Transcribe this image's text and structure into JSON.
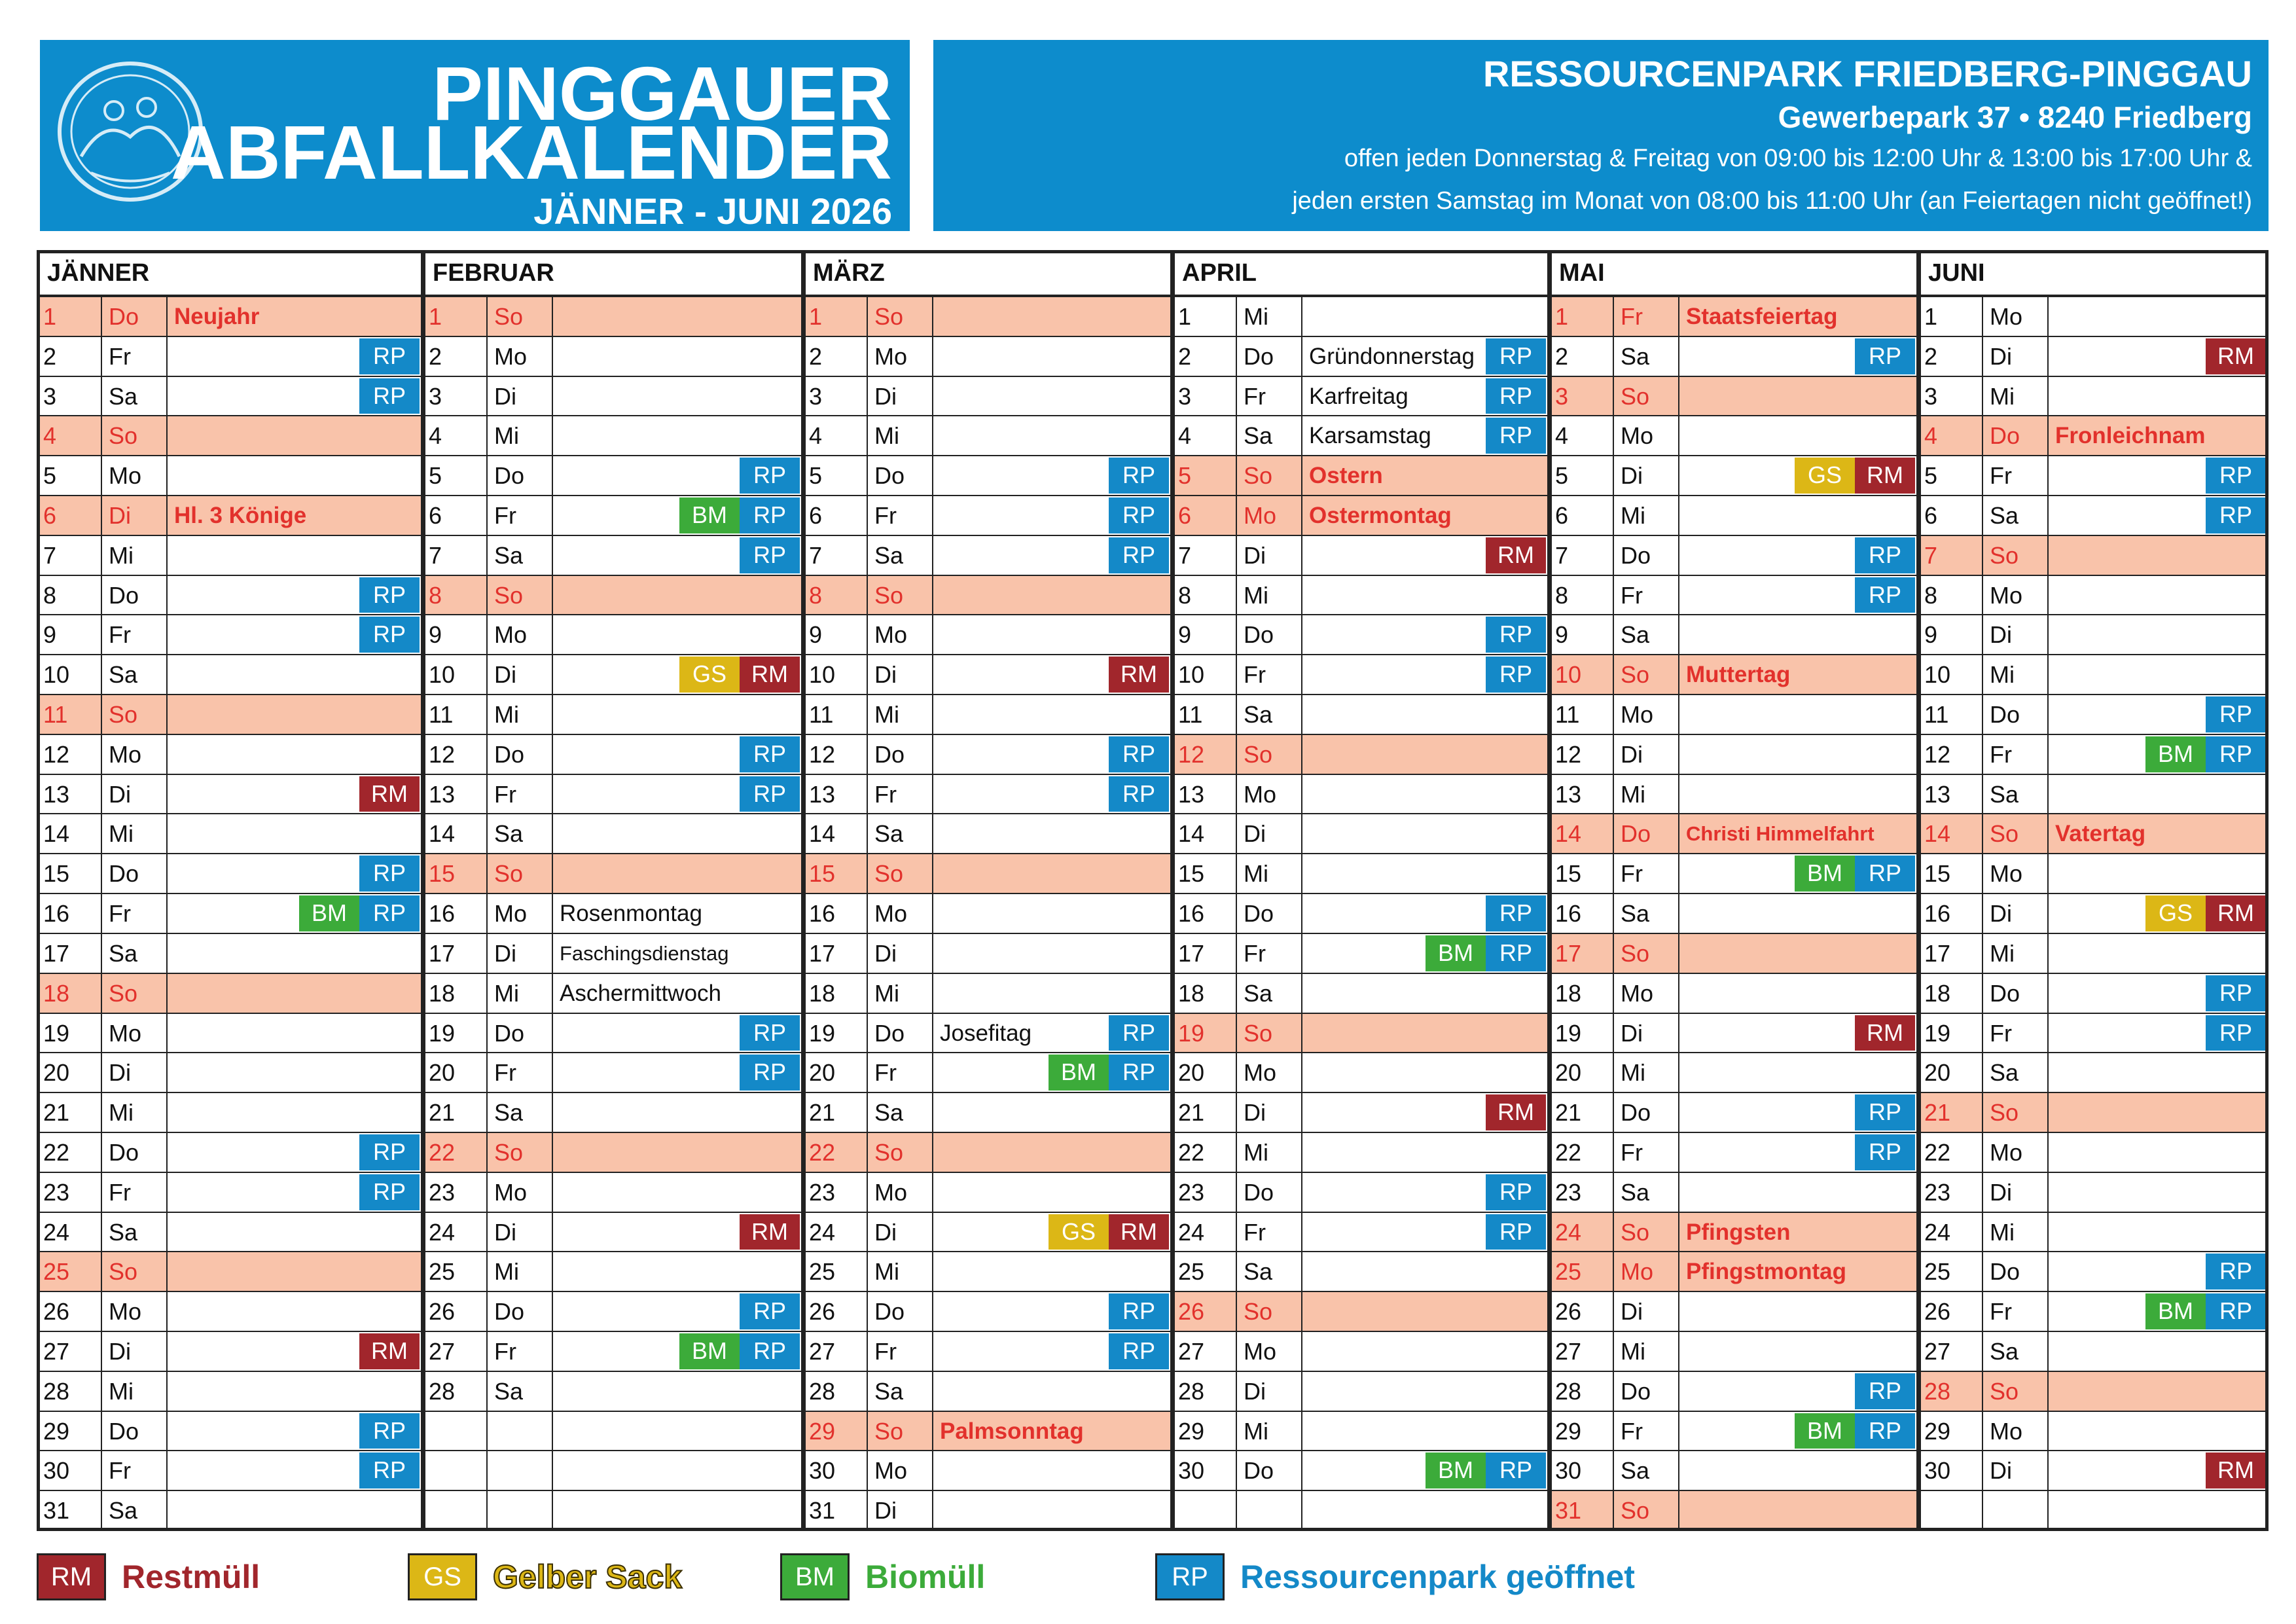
{
  "header": {
    "title_line1": "PINGGAUER",
    "title_line2": "ABFALLKALENDER",
    "period": "JÄNNER - JUNI 2026"
  },
  "info": {
    "name": "RESSOURCENPARK FRIEDBERG-PINGGAU",
    "address": "Gewerbepark 37 • 8240 Friedberg",
    "hours_line1": "offen jeden Donnerstag & Freitag von 09:00 bis 12:00 Uhr & 13:00 bis 17:00 Uhr &",
    "hours_line2": "jeden ersten Samstag im Monat von 08:00 bis 11:00 Uhr (an Feiertagen nicht geöffnet!)"
  },
  "months": [
    {
      "name": "JÄNNER",
      "days": [
        {
          "day": 1,
          "weekday": "Do",
          "note": "Neujahr",
          "holiday": true
        },
        {
          "day": 2,
          "weekday": "Fr",
          "tags": [
            "RP"
          ]
        },
        {
          "day": 3,
          "weekday": "Sa",
          "tags": [
            "RP"
          ]
        },
        {
          "day": 4,
          "weekday": "So",
          "holiday": true
        },
        {
          "day": 5,
          "weekday": "Mo"
        },
        {
          "day": 6,
          "weekday": "Di",
          "note": "Hl. 3 Könige",
          "holiday": true
        },
        {
          "day": 7,
          "weekday": "Mi"
        },
        {
          "day": 8,
          "weekday": "Do",
          "tags": [
            "RP"
          ]
        },
        {
          "day": 9,
          "weekday": "Fr",
          "tags": [
            "RP"
          ]
        },
        {
          "day": 10,
          "weekday": "Sa"
        },
        {
          "day": 11,
          "weekday": "So",
          "holiday": true
        },
        {
          "day": 12,
          "weekday": "Mo"
        },
        {
          "day": 13,
          "weekday": "Di",
          "tags": [
            "RM"
          ]
        },
        {
          "day": 14,
          "weekday": "Mi"
        },
        {
          "day": 15,
          "weekday": "Do",
          "tags": [
            "RP"
          ]
        },
        {
          "day": 16,
          "weekday": "Fr",
          "tags": [
            "BM",
            "RP"
          ]
        },
        {
          "day": 17,
          "weekday": "Sa"
        },
        {
          "day": 18,
          "weekday": "So",
          "holiday": true
        },
        {
          "day": 19,
          "weekday": "Mo"
        },
        {
          "day": 20,
          "weekday": "Di"
        },
        {
          "day": 21,
          "weekday": "Mi"
        },
        {
          "day": 22,
          "weekday": "Do",
          "tags": [
            "RP"
          ]
        },
        {
          "day": 23,
          "weekday": "Fr",
          "tags": [
            "RP"
          ]
        },
        {
          "day": 24,
          "weekday": "Sa"
        },
        {
          "day": 25,
          "weekday": "So",
          "holiday": true
        },
        {
          "day": 26,
          "weekday": "Mo"
        },
        {
          "day": 27,
          "weekday": "Di",
          "tags": [
            "RM"
          ]
        },
        {
          "day": 28,
          "weekday": "Mi"
        },
        {
          "day": 29,
          "weekday": "Do",
          "tags": [
            "RP"
          ]
        },
        {
          "day": 30,
          "weekday": "Fr",
          "tags": [
            "RP"
          ]
        },
        {
          "day": 31,
          "weekday": "Sa"
        }
      ]
    },
    {
      "name": "FEBRUAR",
      "days": [
        {
          "day": 1,
          "weekday": "So",
          "holiday": true
        },
        {
          "day": 2,
          "weekday": "Mo"
        },
        {
          "day": 3,
          "weekday": "Di"
        },
        {
          "day": 4,
          "weekday": "Mi"
        },
        {
          "day": 5,
          "weekday": "Do",
          "tags": [
            "RP"
          ]
        },
        {
          "day": 6,
          "weekday": "Fr",
          "tags": [
            "BM",
            "RP"
          ]
        },
        {
          "day": 7,
          "weekday": "Sa",
          "tags": [
            "RP"
          ]
        },
        {
          "day": 8,
          "weekday": "So",
          "holiday": true
        },
        {
          "day": 9,
          "weekday": "Mo"
        },
        {
          "day": 10,
          "weekday": "Di",
          "tags": [
            "GS",
            "RM"
          ]
        },
        {
          "day": 11,
          "weekday": "Mi"
        },
        {
          "day": 12,
          "weekday": "Do",
          "tags": [
            "RP"
          ]
        },
        {
          "day": 13,
          "weekday": "Fr",
          "tags": [
            "RP"
          ]
        },
        {
          "day": 14,
          "weekday": "Sa"
        },
        {
          "day": 15,
          "weekday": "So",
          "holiday": true
        },
        {
          "day": 16,
          "weekday": "Mo",
          "note": "Rosenmontag"
        },
        {
          "day": 17,
          "weekday": "Di",
          "note": "Faschingsdienstag"
        },
        {
          "day": 18,
          "weekday": "Mi",
          "note": "Aschermittwoch"
        },
        {
          "day": 19,
          "weekday": "Do",
          "tags": [
            "RP"
          ]
        },
        {
          "day": 20,
          "weekday": "Fr",
          "tags": [
            "RP"
          ]
        },
        {
          "day": 21,
          "weekday": "Sa"
        },
        {
          "day": 22,
          "weekday": "So",
          "holiday": true
        },
        {
          "day": 23,
          "weekday": "Mo"
        },
        {
          "day": 24,
          "weekday": "Di",
          "tags": [
            "RM"
          ]
        },
        {
          "day": 25,
          "weekday": "Mi"
        },
        {
          "day": 26,
          "weekday": "Do",
          "tags": [
            "RP"
          ]
        },
        {
          "day": 27,
          "weekday": "Fr",
          "tags": [
            "BM",
            "RP"
          ]
        },
        {
          "day": 28,
          "weekday": "Sa"
        }
      ]
    },
    {
      "name": "MÄRZ",
      "days": [
        {
          "day": 1,
          "weekday": "So",
          "holiday": true
        },
        {
          "day": 2,
          "weekday": "Mo"
        },
        {
          "day": 3,
          "weekday": "Di"
        },
        {
          "day": 4,
          "weekday": "Mi"
        },
        {
          "day": 5,
          "weekday": "Do",
          "tags": [
            "RP"
          ]
        },
        {
          "day": 6,
          "weekday": "Fr",
          "tags": [
            "RP"
          ]
        },
        {
          "day": 7,
          "weekday": "Sa",
          "tags": [
            "RP"
          ]
        },
        {
          "day": 8,
          "weekday": "So",
          "holiday": true
        },
        {
          "day": 9,
          "weekday": "Mo"
        },
        {
          "day": 10,
          "weekday": "Di",
          "tags": [
            "RM"
          ]
        },
        {
          "day": 11,
          "weekday": "Mi"
        },
        {
          "day": 12,
          "weekday": "Do",
          "tags": [
            "RP"
          ]
        },
        {
          "day": 13,
          "weekday": "Fr",
          "tags": [
            "RP"
          ]
        },
        {
          "day": 14,
          "weekday": "Sa"
        },
        {
          "day": 15,
          "weekday": "So",
          "holiday": true
        },
        {
          "day": 16,
          "weekday": "Mo"
        },
        {
          "day": 17,
          "weekday": "Di"
        },
        {
          "day": 18,
          "weekday": "Mi"
        },
        {
          "day": 19,
          "weekday": "Do",
          "note": "Josefitag",
          "tags": [
            "RP"
          ]
        },
        {
          "day": 20,
          "weekday": "Fr",
          "tags": [
            "BM",
            "RP"
          ]
        },
        {
          "day": 21,
          "weekday": "Sa"
        },
        {
          "day": 22,
          "weekday": "So",
          "holiday": true
        },
        {
          "day": 23,
          "weekday": "Mo"
        },
        {
          "day": 24,
          "weekday": "Di",
          "tags": [
            "GS",
            "RM"
          ]
        },
        {
          "day": 25,
          "weekday": "Mi"
        },
        {
          "day": 26,
          "weekday": "Do",
          "tags": [
            "RP"
          ]
        },
        {
          "day": 27,
          "weekday": "Fr",
          "tags": [
            "RP"
          ]
        },
        {
          "day": 28,
          "weekday": "Sa"
        },
        {
          "day": 29,
          "weekday": "So",
          "note": "Palmsonntag",
          "holiday": true
        },
        {
          "day": 30,
          "weekday": "Mo"
        },
        {
          "day": 31,
          "weekday": "Di"
        }
      ]
    },
    {
      "name": "APRIL",
      "days": [
        {
          "day": 1,
          "weekday": "Mi"
        },
        {
          "day": 2,
          "weekday": "Do",
          "note": "Gründonnerstag",
          "tags": [
            "RP"
          ]
        },
        {
          "day": 3,
          "weekday": "Fr",
          "note": "Karfreitag",
          "tags": [
            "RP"
          ]
        },
        {
          "day": 4,
          "weekday": "Sa",
          "note": "Karsamstag",
          "tags": [
            "RP"
          ]
        },
        {
          "day": 5,
          "weekday": "So",
          "note": "Ostern",
          "holiday": true
        },
        {
          "day": 6,
          "weekday": "Mo",
          "note": "Ostermontag",
          "holiday": true
        },
        {
          "day": 7,
          "weekday": "Di",
          "tags": [
            "RM"
          ]
        },
        {
          "day": 8,
          "weekday": "Mi"
        },
        {
          "day": 9,
          "weekday": "Do",
          "tags": [
            "RP"
          ]
        },
        {
          "day": 10,
          "weekday": "Fr",
          "tags": [
            "RP"
          ]
        },
        {
          "day": 11,
          "weekday": "Sa"
        },
        {
          "day": 12,
          "weekday": "So",
          "holiday": true
        },
        {
          "day": 13,
          "weekday": "Mo"
        },
        {
          "day": 14,
          "weekday": "Di"
        },
        {
          "day": 15,
          "weekday": "Mi"
        },
        {
          "day": 16,
          "weekday": "Do",
          "tags": [
            "RP"
          ]
        },
        {
          "day": 17,
          "weekday": "Fr",
          "tags": [
            "BM",
            "RP"
          ]
        },
        {
          "day": 18,
          "weekday": "Sa"
        },
        {
          "day": 19,
          "weekday": "So",
          "holiday": true
        },
        {
          "day": 20,
          "weekday": "Mo"
        },
        {
          "day": 21,
          "weekday": "Di",
          "tags": [
            "RM"
          ]
        },
        {
          "day": 22,
          "weekday": "Mi"
        },
        {
          "day": 23,
          "weekday": "Do",
          "tags": [
            "RP"
          ]
        },
        {
          "day": 24,
          "weekday": "Fr",
          "tags": [
            "RP"
          ]
        },
        {
          "day": 25,
          "weekday": "Sa"
        },
        {
          "day": 26,
          "weekday": "So",
          "holiday": true
        },
        {
          "day": 27,
          "weekday": "Mo"
        },
        {
          "day": 28,
          "weekday": "Di"
        },
        {
          "day": 29,
          "weekday": "Mi"
        },
        {
          "day": 30,
          "weekday": "Do",
          "tags": [
            "BM",
            "RP"
          ]
        }
      ]
    },
    {
      "name": "MAI",
      "days": [
        {
          "day": 1,
          "weekday": "Fr",
          "note": "Staatsfeiertag",
          "holiday": true
        },
        {
          "day": 2,
          "weekday": "Sa",
          "tags": [
            "RP"
          ]
        },
        {
          "day": 3,
          "weekday": "So",
          "holiday": true
        },
        {
          "day": 4,
          "weekday": "Mo"
        },
        {
          "day": 5,
          "weekday": "Di",
          "tags": [
            "GS",
            "RM"
          ]
        },
        {
          "day": 6,
          "weekday": "Mi"
        },
        {
          "day": 7,
          "weekday": "Do",
          "tags": [
            "RP"
          ]
        },
        {
          "day": 8,
          "weekday": "Fr",
          "tags": [
            "RP"
          ]
        },
        {
          "day": 9,
          "weekday": "Sa"
        },
        {
          "day": 10,
          "weekday": "So",
          "note": "Muttertag",
          "holiday": true
        },
        {
          "day": 11,
          "weekday": "Mo"
        },
        {
          "day": 12,
          "weekday": "Di"
        },
        {
          "day": 13,
          "weekday": "Mi"
        },
        {
          "day": 14,
          "weekday": "Do",
          "note": "Christi Himmelfahrt",
          "holiday": true
        },
        {
          "day": 15,
          "weekday": "Fr",
          "tags": [
            "BM",
            "RP"
          ]
        },
        {
          "day": 16,
          "weekday": "Sa"
        },
        {
          "day": 17,
          "weekday": "So",
          "holiday": true
        },
        {
          "day": 18,
          "weekday": "Mo"
        },
        {
          "day": 19,
          "weekday": "Di",
          "tags": [
            "RM"
          ]
        },
        {
          "day": 20,
          "weekday": "Mi"
        },
        {
          "day": 21,
          "weekday": "Do",
          "tags": [
            "RP"
          ]
        },
        {
          "day": 22,
          "weekday": "Fr",
          "tags": [
            "RP"
          ]
        },
        {
          "day": 23,
          "weekday": "Sa"
        },
        {
          "day": 24,
          "weekday": "So",
          "note": "Pfingsten",
          "holiday": true
        },
        {
          "day": 25,
          "weekday": "Mo",
          "note": "Pfingstmontag",
          "holiday": true
        },
        {
          "day": 26,
          "weekday": "Di"
        },
        {
          "day": 27,
          "weekday": "Mi"
        },
        {
          "day": 28,
          "weekday": "Do",
          "tags": [
            "RP"
          ]
        },
        {
          "day": 29,
          "weekday": "Fr",
          "tags": [
            "BM",
            "RP"
          ]
        },
        {
          "day": 30,
          "weekday": "Sa"
        },
        {
          "day": 31,
          "weekday": "So",
          "holiday": true
        }
      ]
    },
    {
      "name": "JUNI",
      "days": [
        {
          "day": 1,
          "weekday": "Mo"
        },
        {
          "day": 2,
          "weekday": "Di",
          "tags": [
            "RM"
          ]
        },
        {
          "day": 3,
          "weekday": "Mi"
        },
        {
          "day": 4,
          "weekday": "Do",
          "note": "Fronleichnam",
          "holiday": true
        },
        {
          "day": 5,
          "weekday": "Fr",
          "tags": [
            "RP"
          ]
        },
        {
          "day": 6,
          "weekday": "Sa",
          "tags": [
            "RP"
          ]
        },
        {
          "day": 7,
          "weekday": "So",
          "holiday": true
        },
        {
          "day": 8,
          "weekday": "Mo"
        },
        {
          "day": 9,
          "weekday": "Di"
        },
        {
          "day": 10,
          "weekday": "Mi"
        },
        {
          "day": 11,
          "weekday": "Do",
          "tags": [
            "RP"
          ]
        },
        {
          "day": 12,
          "weekday": "Fr",
          "tags": [
            "BM",
            "RP"
          ]
        },
        {
          "day": 13,
          "weekday": "Sa"
        },
        {
          "day": 14,
          "weekday": "So",
          "note": "Vatertag",
          "holiday": true
        },
        {
          "day": 15,
          "weekday": "Mo"
        },
        {
          "day": 16,
          "weekday": "Di",
          "tags": [
            "GS",
            "RM"
          ]
        },
        {
          "day": 17,
          "weekday": "Mi"
        },
        {
          "day": 18,
          "weekday": "Do",
          "tags": [
            "RP"
          ]
        },
        {
          "day": 19,
          "weekday": "Fr",
          "tags": [
            "RP"
          ]
        },
        {
          "day": 20,
          "weekday": "Sa"
        },
        {
          "day": 21,
          "weekday": "So",
          "holiday": true
        },
        {
          "day": 22,
          "weekday": "Mo"
        },
        {
          "day": 23,
          "weekday": "Di"
        },
        {
          "day": 24,
          "weekday": "Mi"
        },
        {
          "day": 25,
          "weekday": "Do",
          "tags": [
            "RP"
          ]
        },
        {
          "day": 26,
          "weekday": "Fr",
          "tags": [
            "BM",
            "RP"
          ]
        },
        {
          "day": 27,
          "weekday": "Sa"
        },
        {
          "day": 28,
          "weekday": "So",
          "holiday": true
        },
        {
          "day": 29,
          "weekday": "Mo"
        },
        {
          "day": 30,
          "weekday": "Di",
          "tags": [
            "RM"
          ]
        }
      ]
    }
  ],
  "legend": [
    {
      "code": "RM",
      "label": "Restmüll",
      "color": "#a1262c"
    },
    {
      "code": "GS",
      "label": "Gelber Sack",
      "color": "#dcb716"
    },
    {
      "code": "BM",
      "label": "Biomüll",
      "color": "#3cab3a"
    },
    {
      "code": "RP",
      "label": "Ressourcenpark geöffnet",
      "color": "#1489c8"
    }
  ]
}
